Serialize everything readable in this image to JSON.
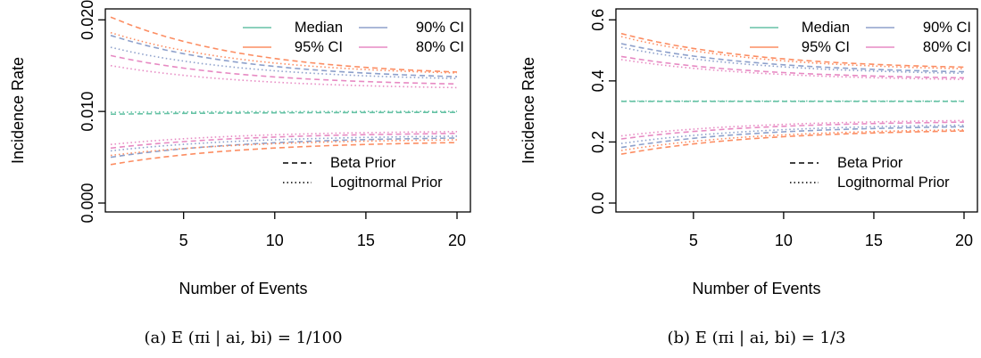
{
  "colors": {
    "median": "#66c2a5",
    "ci95": "#fc8d62",
    "ci90": "#8da0cb",
    "ci80": "#e78ac3",
    "axis": "#000000"
  },
  "line_styles": {
    "beta": "dashed",
    "logitnormal": "dotted"
  },
  "chart_data": [
    {
      "type": "line",
      "caption": "(a)  E (πi | ai, bi) = 1/100",
      "xlabel": "Number of Events",
      "ylabel": "Incidence Rate",
      "xlim": [
        0,
        21
      ],
      "ylim": [
        0,
        0.021
      ],
      "xticks": [
        5,
        10,
        15,
        20
      ],
      "yticks": [
        0.0,
        0.01,
        0.02
      ],
      "ytick_labels": [
        "0.000",
        "0.010",
        "0.020"
      ],
      "legend_colors": [
        {
          "label": "Median",
          "color_key": "median"
        },
        {
          "label": "90% CI",
          "color_key": "ci90"
        },
        {
          "label": "95% CI",
          "color_key": "ci95"
        },
        {
          "label": "80% CI",
          "color_key": "ci80"
        }
      ],
      "legend_styles": [
        {
          "label": "Beta Prior",
          "style": "dashed"
        },
        {
          "label": "Logitnormal Prior",
          "style": "dotted"
        }
      ],
      "x": [
        1,
        2,
        3,
        4,
        5,
        6,
        7,
        8,
        9,
        10,
        11,
        12,
        13,
        14,
        15,
        16,
        17,
        18,
        19,
        20
      ],
      "series": [
        {
          "prior": "beta",
          "band": "ci95",
          "start": 0.0203,
          "end": 0.0143
        },
        {
          "prior": "beta",
          "band": "ci90",
          "start": 0.0183,
          "end": 0.0138
        },
        {
          "prior": "beta",
          "band": "ci80",
          "start": 0.0161,
          "end": 0.013
        },
        {
          "prior": "beta",
          "band": "median",
          "start": 0.0097,
          "end": 0.0099
        },
        {
          "prior": "beta",
          "band": "ci80",
          "start": 0.006,
          "end": 0.0076
        },
        {
          "prior": "beta",
          "band": "ci90",
          "start": 0.005,
          "end": 0.0071
        },
        {
          "prior": "beta",
          "band": "ci95",
          "start": 0.0042,
          "end": 0.0066
        },
        {
          "prior": "logitnormal",
          "band": "ci95",
          "start": 0.0186,
          "end": 0.0142
        },
        {
          "prior": "logitnormal",
          "band": "ci90",
          "start": 0.017,
          "end": 0.0136
        },
        {
          "prior": "logitnormal",
          "band": "ci80",
          "start": 0.015,
          "end": 0.0126
        },
        {
          "prior": "logitnormal",
          "band": "median",
          "start": 0.0099,
          "end": 0.01
        },
        {
          "prior": "logitnormal",
          "band": "ci80",
          "start": 0.0064,
          "end": 0.0078
        },
        {
          "prior": "logitnormal",
          "band": "ci90",
          "start": 0.0057,
          "end": 0.0073
        },
        {
          "prior": "logitnormal",
          "band": "ci95",
          "start": 0.0052,
          "end": 0.0069
        }
      ]
    },
    {
      "type": "line",
      "caption": "(b)  E (πi | ai, bi) = 1/3",
      "xlabel": "Number of Events",
      "ylabel": "Incidence Rate",
      "xlim": [
        0,
        21
      ],
      "ylim": [
        0,
        0.63
      ],
      "xticks": [
        5,
        10,
        15,
        20
      ],
      "yticks": [
        0.0,
        0.2,
        0.4,
        0.6
      ],
      "ytick_labels": [
        "0.0",
        "0.2",
        "0.4",
        "0.6"
      ],
      "legend_colors": [
        {
          "label": "Median",
          "color_key": "median"
        },
        {
          "label": "90% CI",
          "color_key": "ci90"
        },
        {
          "label": "95% CI",
          "color_key": "ci95"
        },
        {
          "label": "80% CI",
          "color_key": "ci80"
        }
      ],
      "legend_styles": [
        {
          "label": "Beta Prior",
          "style": "dashed"
        },
        {
          "label": "Logitnormal Prior",
          "style": "dotted"
        }
      ],
      "x": [
        1,
        2,
        3,
        4,
        5,
        6,
        7,
        8,
        9,
        10,
        11,
        12,
        13,
        14,
        15,
        16,
        17,
        18,
        19,
        20
      ],
      "series": [
        {
          "prior": "beta",
          "band": "ci95",
          "start": 0.555,
          "end": 0.445
        },
        {
          "prior": "beta",
          "band": "ci90",
          "start": 0.522,
          "end": 0.43
        },
        {
          "prior": "beta",
          "band": "ci80",
          "start": 0.48,
          "end": 0.41
        },
        {
          "prior": "beta",
          "band": "median",
          "start": 0.333,
          "end": 0.333
        },
        {
          "prior": "beta",
          "band": "ci80",
          "start": 0.21,
          "end": 0.265
        },
        {
          "prior": "beta",
          "band": "ci90",
          "start": 0.182,
          "end": 0.25
        },
        {
          "prior": "beta",
          "band": "ci95",
          "start": 0.16,
          "end": 0.236
        },
        {
          "prior": "logitnormal",
          "band": "ci95",
          "start": 0.545,
          "end": 0.44
        },
        {
          "prior": "logitnormal",
          "band": "ci90",
          "start": 0.51,
          "end": 0.425
        },
        {
          "prior": "logitnormal",
          "band": "ci80",
          "start": 0.47,
          "end": 0.405
        },
        {
          "prior": "logitnormal",
          "band": "median",
          "start": 0.334,
          "end": 0.334
        },
        {
          "prior": "logitnormal",
          "band": "ci80",
          "start": 0.22,
          "end": 0.27
        },
        {
          "prior": "logitnormal",
          "band": "ci90",
          "start": 0.195,
          "end": 0.255
        },
        {
          "prior": "logitnormal",
          "band": "ci95",
          "start": 0.172,
          "end": 0.24
        }
      ]
    }
  ]
}
